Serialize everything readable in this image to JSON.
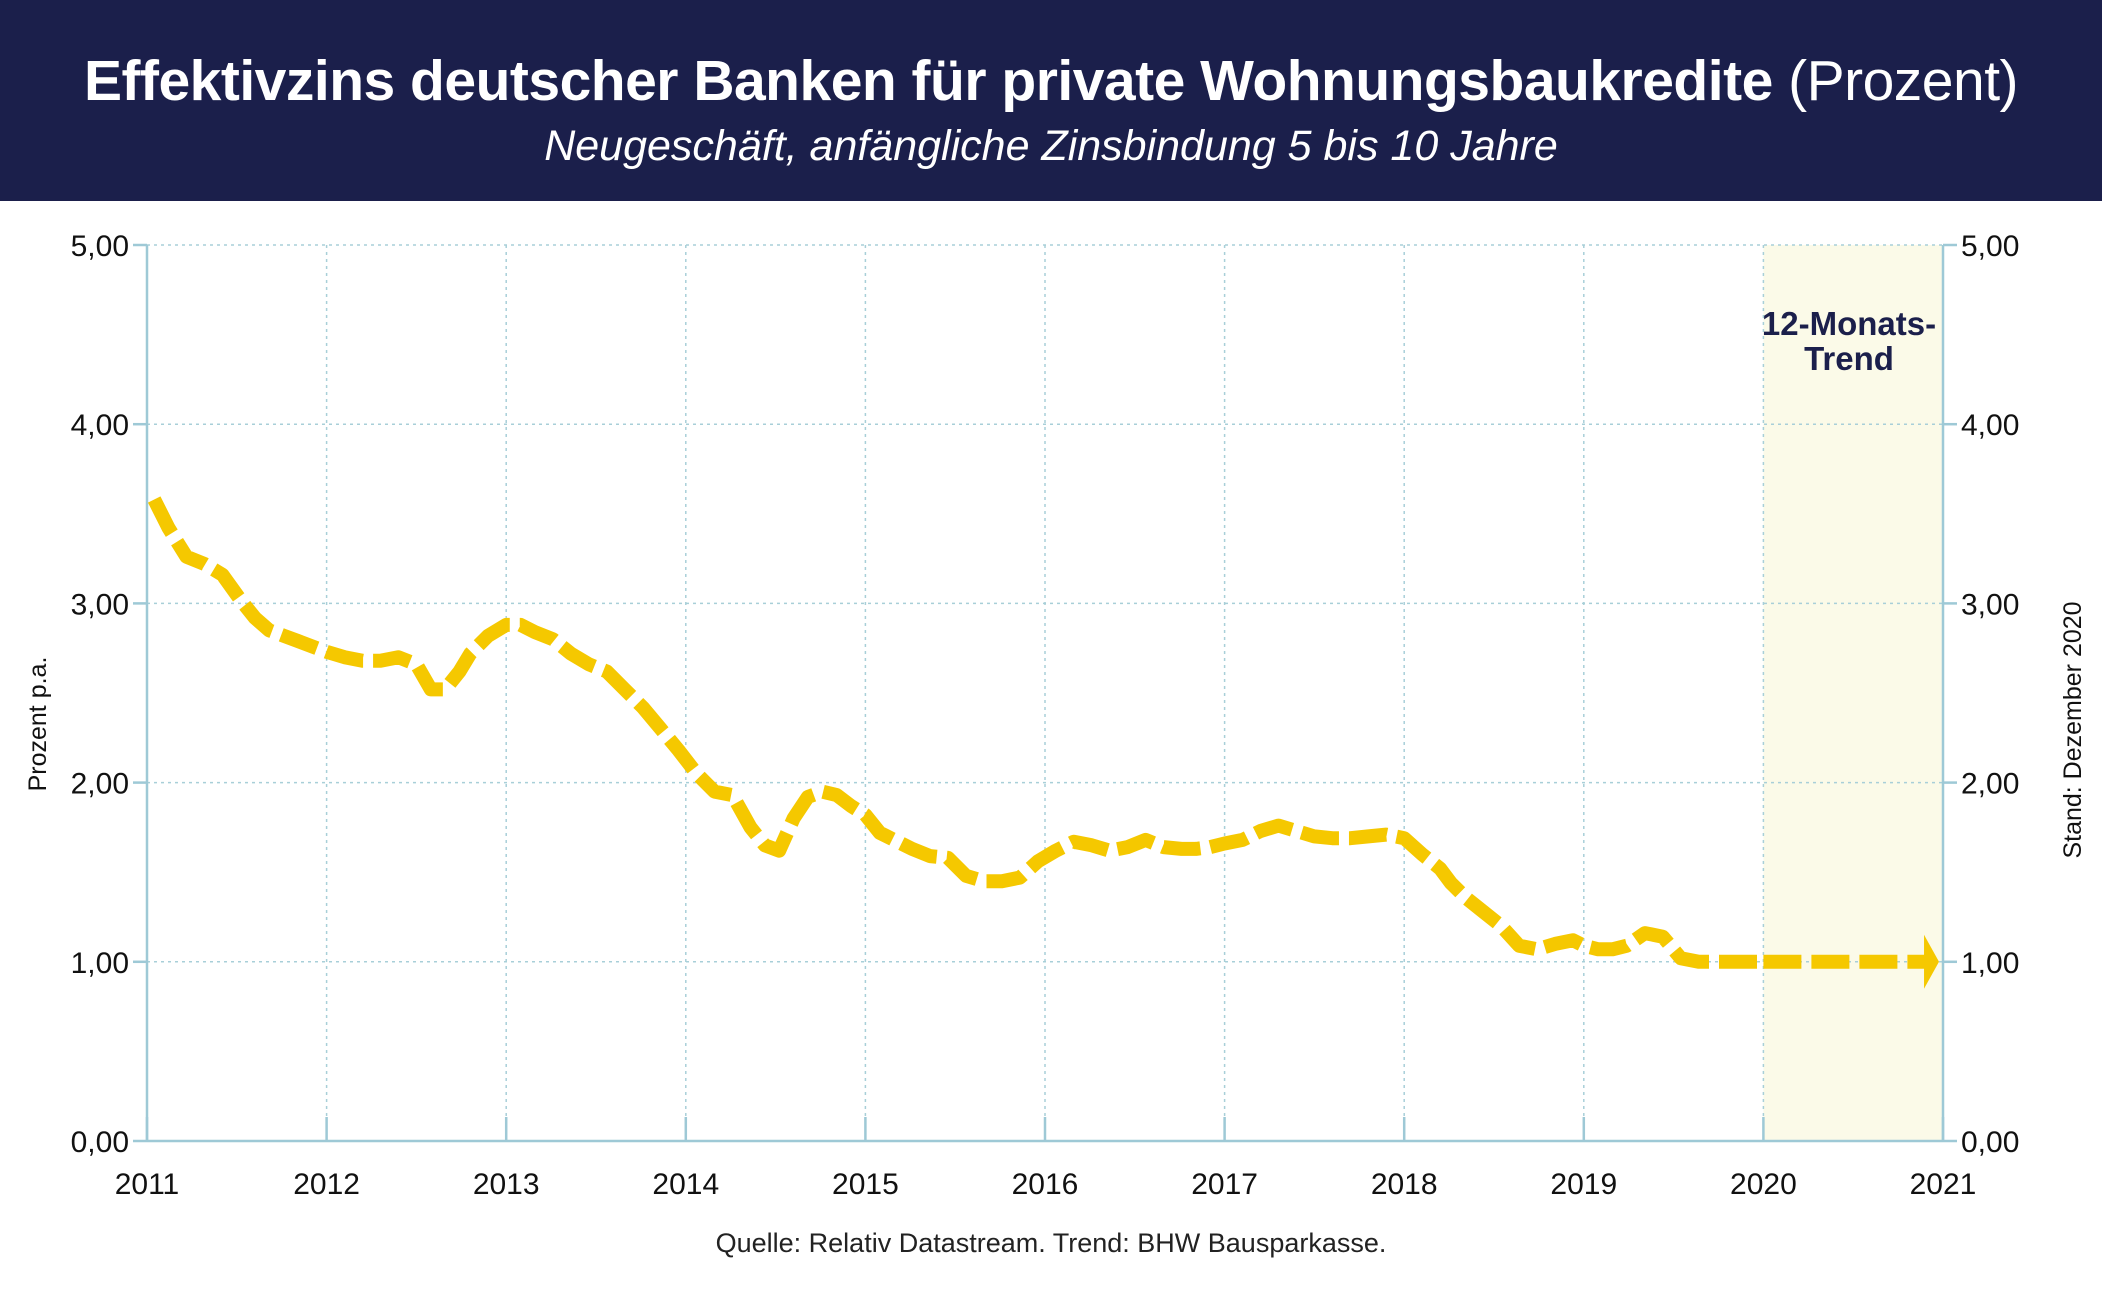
{
  "header": {
    "title": "Effektivzins deutscher Banken für private Wohnungsbaukredite",
    "title_unit": "(Prozent)",
    "subtitle": "Neugeschäft, anfängliche Zinsbindung 5 bis 10 Jahre"
  },
  "source": "Quelle: Relativ Datastream. Trend: BHW Bausparkasse.",
  "colors": {
    "header_bg": "#1b1f4b",
    "line": "#f5c800",
    "trend_bg": "#fbfae8",
    "grid": "#a8cfd8",
    "axis": "#9ec9d6"
  },
  "chart_data": {
    "type": "line",
    "ylabel": "Prozent p.a.",
    "right_note": "Stand: Dezember 2020",
    "trend_label": [
      "12-Monats-",
      "Trend"
    ],
    "ylim": [
      0,
      5
    ],
    "xlim": [
      2011,
      2021
    ],
    "y_ticks": [
      "0,00",
      "1,00",
      "2,00",
      "3,00",
      "4,00",
      "5,00"
    ],
    "x_ticks": [
      "2011",
      "2012",
      "2013",
      "2014",
      "2015",
      "2016",
      "2017",
      "2018",
      "2019",
      "2020",
      "2021"
    ],
    "grid": true,
    "line_style": "dashed",
    "trend_region": [
      2020,
      2021
    ],
    "series": [
      {
        "x": [
          2011.04,
          2011.12,
          2011.22,
          2011.32,
          2011.42,
          2011.52,
          2011.6,
          2011.68,
          2011.76,
          2011.84,
          2011.92,
          2012.0,
          2012.1,
          2012.2,
          2012.3,
          2012.4,
          2012.5,
          2012.58,
          2012.66,
          2012.74,
          2012.8,
          2012.9,
          2013.0,
          2013.08,
          2013.16,
          2013.26,
          2013.36,
          2013.46,
          2013.56,
          2013.66,
          2013.76,
          2013.86,
          2013.96,
          2014.06,
          2014.16,
          2014.26,
          2014.36,
          2014.44,
          2014.52,
          2014.6,
          2014.68,
          2014.76,
          2014.84,
          2014.92,
          2015.0,
          2015.08,
          2015.16,
          2015.26,
          2015.36,
          2015.46,
          2015.56,
          2015.66,
          2015.76,
          2015.86,
          2015.96,
          2016.06,
          2016.16,
          2016.26,
          2016.36,
          2016.46,
          2016.56,
          2016.66,
          2016.76,
          2016.84,
          2016.92,
          2017.0,
          2017.1,
          2017.2,
          2017.3,
          2017.4,
          2017.5,
          2017.6,
          2017.7,
          2017.8,
          2017.9,
          2018.0,
          2018.1,
          2018.2,
          2018.26,
          2018.34,
          2018.44,
          2018.54,
          2018.64,
          2018.74,
          2018.84,
          2018.94,
          2019.0,
          2019.08,
          2019.16,
          2019.24,
          2019.34,
          2019.44,
          2019.54,
          2019.64,
          2019.72,
          2019.8,
          2019.9,
          2020.0
        ],
        "y": [
          3.58,
          3.42,
          3.26,
          3.22,
          3.16,
          3.02,
          2.92,
          2.85,
          2.82,
          2.79,
          2.76,
          2.73,
          2.7,
          2.68,
          2.68,
          2.7,
          2.66,
          2.52,
          2.52,
          2.62,
          2.72,
          2.82,
          2.88,
          2.88,
          2.84,
          2.8,
          2.72,
          2.66,
          2.62,
          2.52,
          2.42,
          2.3,
          2.18,
          2.05,
          1.95,
          1.93,
          1.75,
          1.65,
          1.62,
          1.8,
          1.92,
          1.95,
          1.93,
          1.87,
          1.82,
          1.72,
          1.68,
          1.63,
          1.59,
          1.58,
          1.48,
          1.45,
          1.45,
          1.47,
          1.56,
          1.62,
          1.67,
          1.65,
          1.62,
          1.64,
          1.68,
          1.64,
          1.63,
          1.63,
          1.64,
          1.66,
          1.68,
          1.73,
          1.76,
          1.73,
          1.7,
          1.69,
          1.69,
          1.7,
          1.71,
          1.69,
          1.6,
          1.52,
          1.44,
          1.36,
          1.28,
          1.2,
          1.09,
          1.07,
          1.1,
          1.12,
          1.09,
          1.07,
          1.07,
          1.09,
          1.16,
          1.14,
          1.02,
          1.0,
          1.0,
          1.0,
          1.0,
          1.0
        ]
      },
      {
        "x": [
          2020.0,
          2020.95
        ],
        "y": [
          1.0,
          1.0
        ]
      }
    ]
  }
}
